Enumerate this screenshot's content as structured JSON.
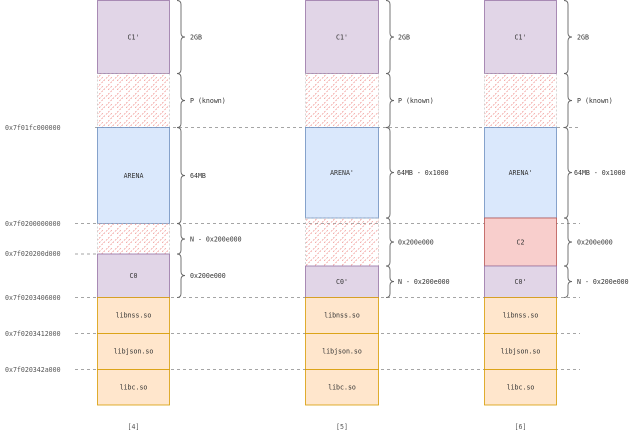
{
  "addresses": [
    "0x7f01fc000000",
    "0x7f0200000000",
    "0x7f020200d000",
    "0x7f0203406000",
    "0x7f0203412000",
    "0x7f020342a000"
  ],
  "columns": [
    {
      "caption": "[4]",
      "blocks": [
        {
          "kind": "chunk",
          "label": "C1'",
          "color": "#e1d5e7"
        },
        {
          "kind": "hatched",
          "label": ""
        },
        {
          "kind": "chunk",
          "label": "ARENA",
          "color": "#dae8fc"
        },
        {
          "kind": "hatched",
          "label": ""
        },
        {
          "kind": "chunk",
          "label": "C0",
          "color": "#e1d5e7"
        },
        {
          "kind": "lib",
          "label": "libnss.so",
          "color": "#ffe6cc"
        },
        {
          "kind": "lib",
          "label": "libjson.so",
          "color": "#ffe6cc"
        },
        {
          "kind": "lib",
          "label": "libc.so",
          "color": "#ffe6cc"
        }
      ],
      "braces": [
        "2GB",
        "P (known)",
        "64MB",
        "N - 0x200e000",
        "0x200e000"
      ]
    },
    {
      "caption": "[5]",
      "blocks": [
        {
          "kind": "chunk",
          "label": "C1'",
          "color": "#e1d5e7"
        },
        {
          "kind": "hatched",
          "label": ""
        },
        {
          "kind": "chunk",
          "label": "ARENA'",
          "color": "#dae8fc"
        },
        {
          "kind": "hatched",
          "label": ""
        },
        {
          "kind": "chunk",
          "label": "C0'",
          "color": "#e1d5e7"
        },
        {
          "kind": "lib",
          "label": "libnss.so",
          "color": "#ffe6cc"
        },
        {
          "kind": "lib",
          "label": "libjson.so",
          "color": "#ffe6cc"
        },
        {
          "kind": "lib",
          "label": "libc.so",
          "color": "#ffe6cc"
        }
      ],
      "braces": [
        "2GB",
        "P (known)",
        "64MB - 0x1000",
        "0x200e000",
        "N - 0x200e000"
      ]
    },
    {
      "caption": "[6]",
      "blocks": [
        {
          "kind": "chunk",
          "label": "C1'",
          "color": "#e1d5e7"
        },
        {
          "kind": "hatched",
          "label": ""
        },
        {
          "kind": "chunk",
          "label": "ARENA'",
          "color": "#dae8fc"
        },
        {
          "kind": "chunk",
          "label": "C2",
          "color": "#f8cecc"
        },
        {
          "kind": "chunk",
          "label": "C0'",
          "color": "#e1d5e7"
        },
        {
          "kind": "lib",
          "label": "libnss.so",
          "color": "#ffe6cc"
        },
        {
          "kind": "lib",
          "label": "libjson.so",
          "color": "#ffe6cc"
        },
        {
          "kind": "lib",
          "label": "libc.so",
          "color": "#ffe6cc"
        }
      ],
      "braces": [
        "2GB",
        "P (known)",
        "64MB - 0x1000",
        "0x200e000",
        "N - 0x200e000"
      ]
    }
  ]
}
